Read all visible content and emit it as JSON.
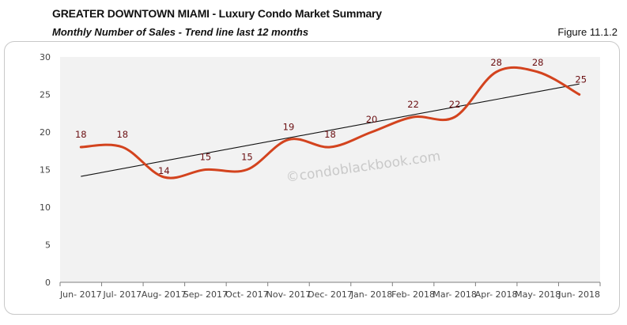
{
  "header": {
    "title": "GREATER DOWNTOWN MIAMI - Luxury Condo Market Summary",
    "subtitle": "Monthly Number of Sales - Trend line last 12 months",
    "figure": "Figure 11.1.2"
  },
  "watermark": "©condoblackbook.com",
  "colors": {
    "series": "#d3431e",
    "trend": "#111111",
    "plot_bg": "#f2f2f2",
    "data_label": "#6b0f12"
  },
  "chart_data": {
    "type": "line",
    "title": "Monthly Number of Sales - Trend line last 12 months",
    "xlabel": "",
    "ylabel": "",
    "categories": [
      "Jun- 2017",
      "Jul- 2017",
      "Aug- 2017",
      "Sep- 2017",
      "Oct- 2017",
      "Nov- 2017",
      "Dec- 2017",
      "Jan- 2018",
      "Feb- 2018",
      "Mar- 2018",
      "Apr- 2018",
      "May- 2018",
      "Jun- 2018"
    ],
    "series": [
      {
        "name": "Number of Sales",
        "values": [
          18,
          18,
          14,
          15,
          15,
          19,
          18,
          20,
          22,
          22,
          28,
          28,
          25
        ],
        "smooth": true
      },
      {
        "name": "Linear Trend",
        "type": "trendline",
        "start": 14.1,
        "end": 26.4
      }
    ],
    "ylim": [
      0,
      30
    ],
    "yticks": [
      0,
      5,
      10,
      15,
      20,
      25,
      30
    ],
    "grid": false,
    "legend": "none",
    "data_labels": true
  }
}
